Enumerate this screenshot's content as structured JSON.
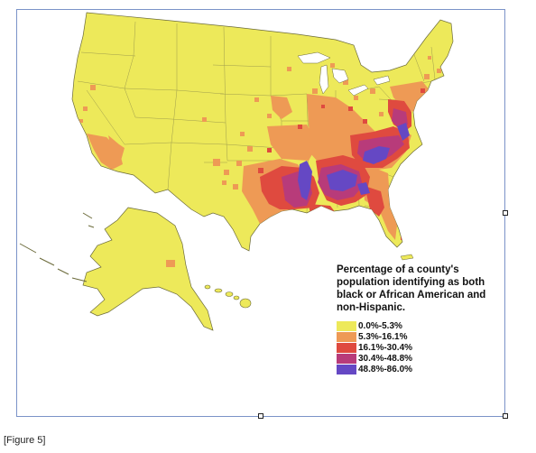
{
  "legend": {
    "title_lines": [
      "Percentage of a county's",
      "population identifying as both",
      "black or African American and",
      "non-Hispanic."
    ],
    "items": [
      {
        "label": "0.0%-5.3%",
        "color": "#ede95a"
      },
      {
        "label": "5.3%-16.1%",
        "color": "#ee9a55"
      },
      {
        "label": "16.1%-30.4%",
        "color": "#df4a3f"
      },
      {
        "label": "30.4%-48.8%",
        "color": "#b83b7a"
      },
      {
        "label": "48.8%-86.0%",
        "color": "#6548c4"
      }
    ]
  },
  "caption": "[Figure 5]",
  "colors": {
    "base": "#ede95a",
    "frame": "#7b93c8",
    "outline": "#6b6a3a"
  }
}
